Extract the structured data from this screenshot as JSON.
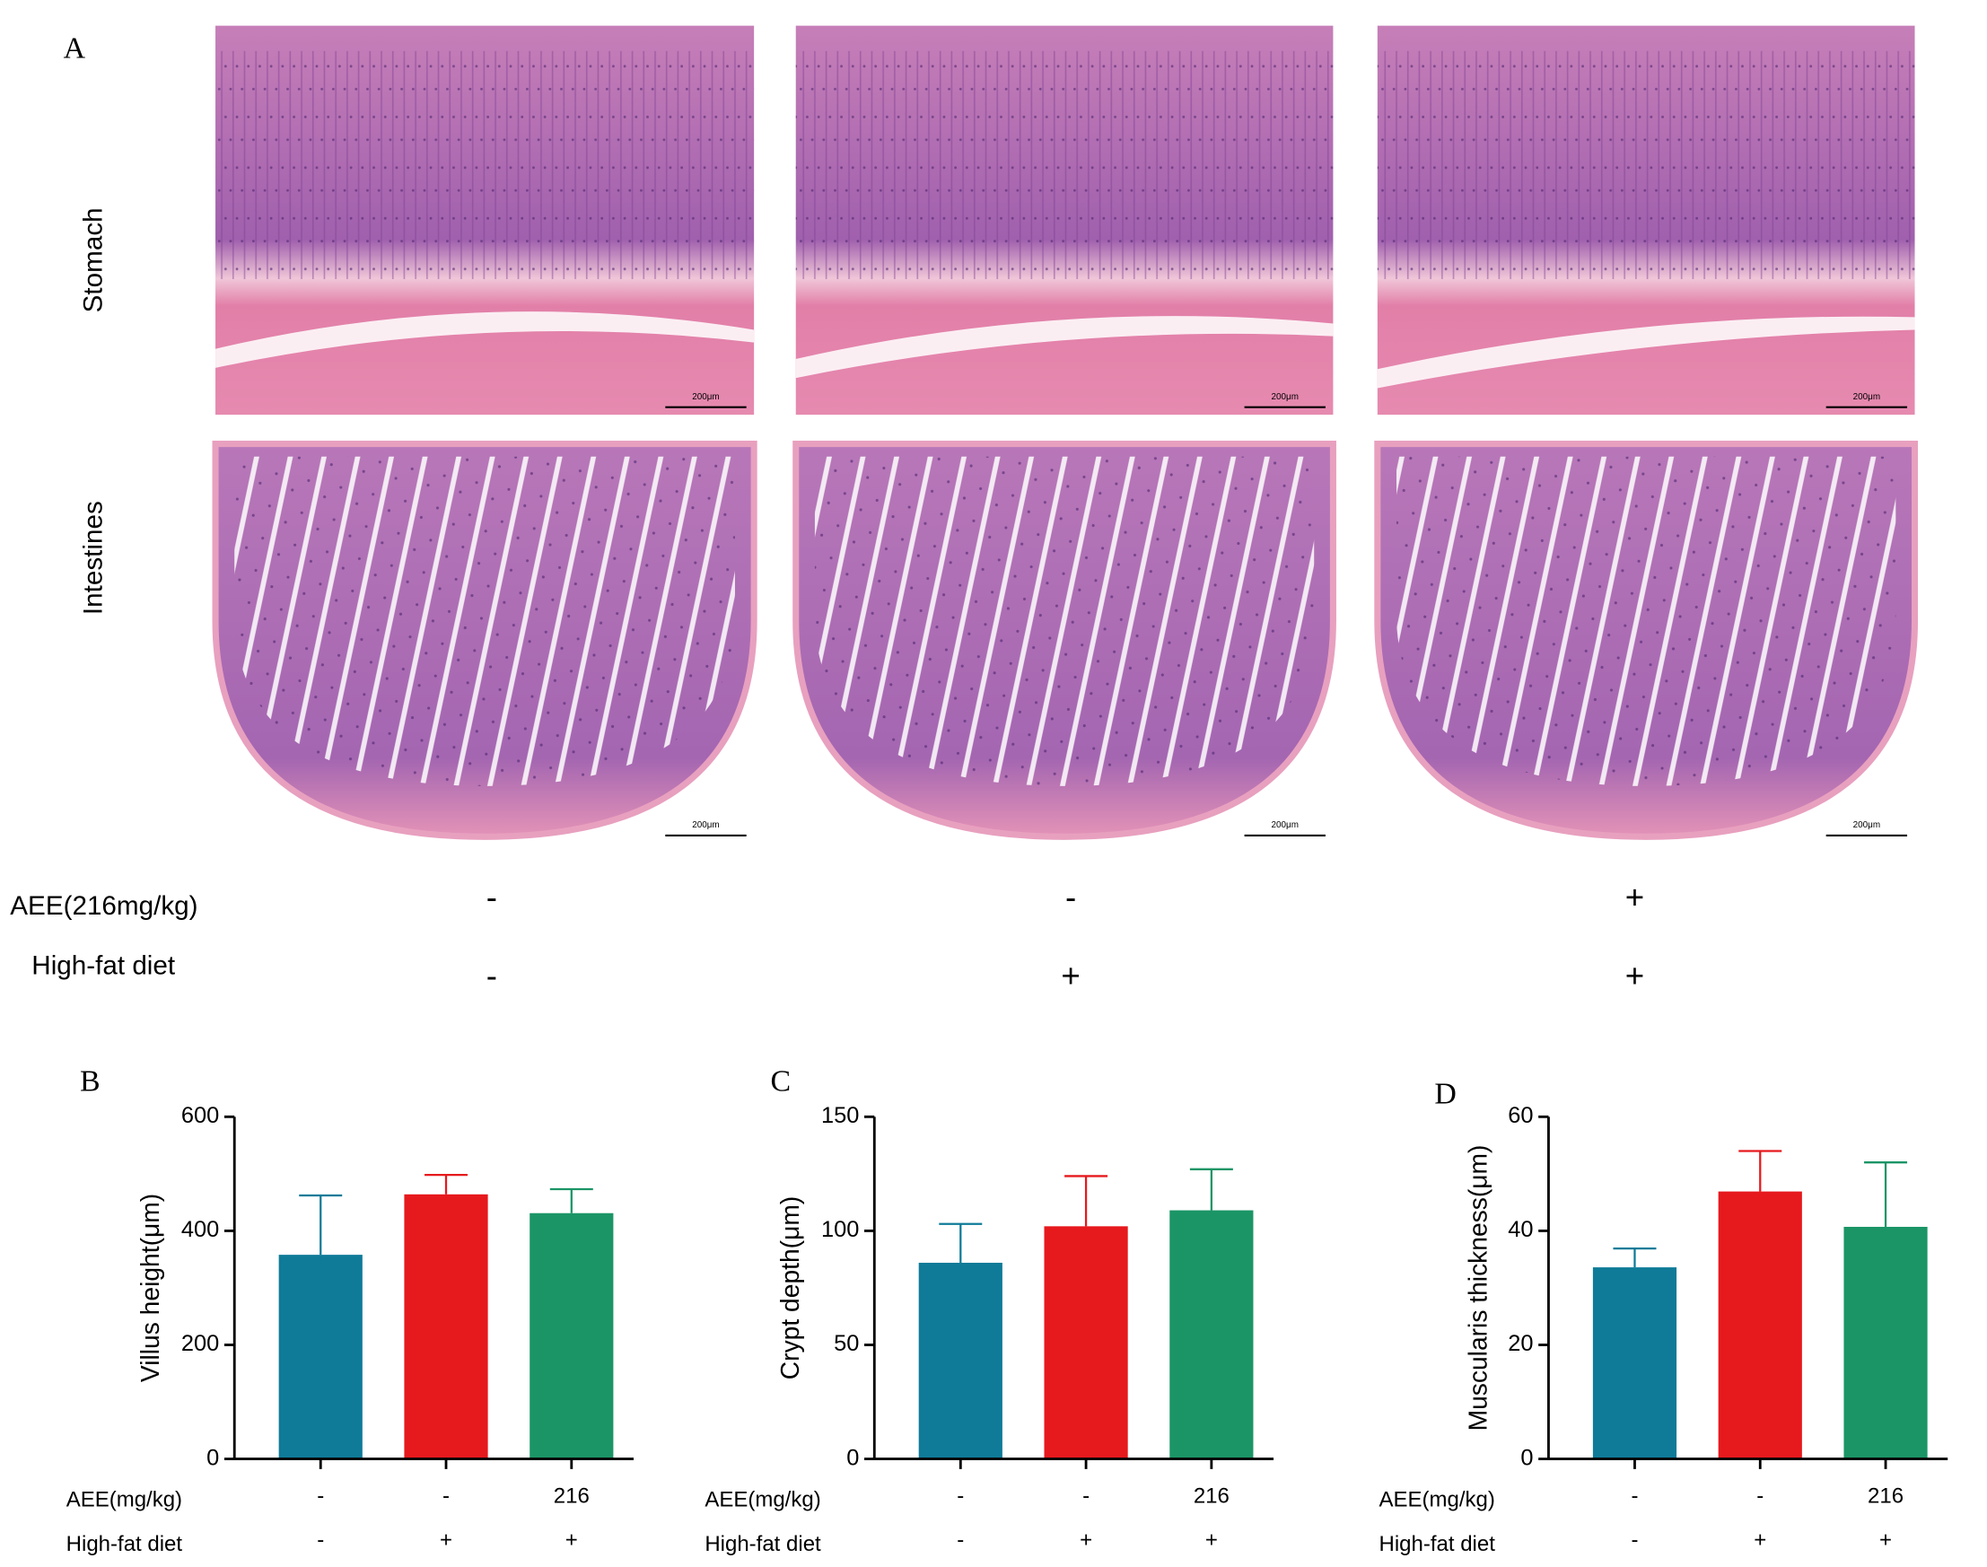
{
  "panel_a": {
    "label": "A",
    "rows": [
      "Stomach",
      "Intestines"
    ],
    "scale_bar": "200μm",
    "conditions": [
      {
        "label": "AEE(216mg/kg)",
        "values": [
          "-",
          "-",
          "+"
        ]
      },
      {
        "label": "High-fat diet",
        "values": [
          "-",
          "+",
          "+"
        ]
      }
    ]
  },
  "chart_data": [
    {
      "type": "bar",
      "label": "B",
      "y_label": "Villus height(μm)",
      "category_rows": [
        "AEE(mg/kg)",
        "High-fat diet"
      ],
      "categories": [
        [
          "-",
          "-"
        ],
        [
          "-",
          "+"
        ],
        [
          "216",
          "+"
        ]
      ],
      "colors": [
        "#0f7b98",
        "#e6191d",
        "#1b9566"
      ],
      "values": [
        358,
        464,
        431
      ],
      "errors": [
        104,
        34,
        42
      ],
      "ylim": [
        0,
        600
      ],
      "yticks": [
        0,
        200,
        400,
        600
      ]
    },
    {
      "type": "bar",
      "label": "C",
      "y_label": "Crypt depth(μm)",
      "category_rows": [
        "AEE(mg/kg)",
        "High-fat diet"
      ],
      "categories": [
        [
          "-",
          "-"
        ],
        [
          "-",
          "+"
        ],
        [
          "216",
          "+"
        ]
      ],
      "colors": [
        "#0f7b98",
        "#e6191d",
        "#1b9566"
      ],
      "values": [
        86,
        102,
        109
      ],
      "errors": [
        17,
        22,
        18
      ],
      "ylim": [
        0,
        150
      ],
      "yticks": [
        0,
        50,
        100,
        150
      ]
    },
    {
      "type": "bar",
      "label": "D",
      "y_label": "Muscularis thickness(μm)",
      "category_rows": [
        "AEE(mg/kg)",
        "High-fat diet"
      ],
      "categories": [
        [
          "-",
          "-"
        ],
        [
          "-",
          "+"
        ],
        [
          "216",
          "+"
        ]
      ],
      "colors": [
        "#0f7b98",
        "#e6191d",
        "#1b9566"
      ],
      "values": [
        33.6,
        46.9,
        40.7
      ],
      "errors": [
        3.3,
        7.1,
        11.3
      ],
      "ylim": [
        0,
        60
      ],
      "yticks": [
        0,
        20,
        40,
        60
      ]
    }
  ]
}
